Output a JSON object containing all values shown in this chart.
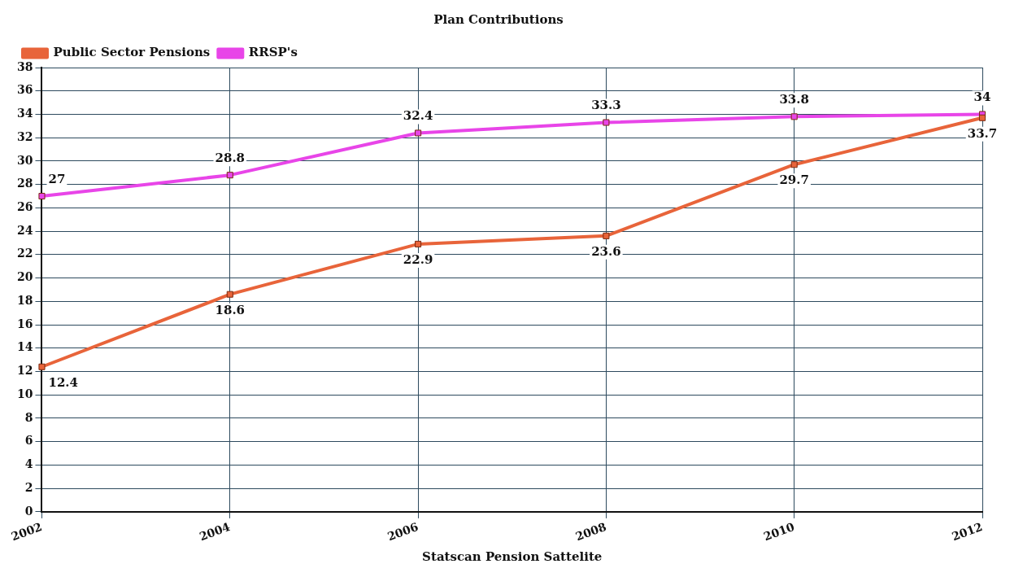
{
  "chart_data": {
    "type": "line",
    "title": "Plan Contributions",
    "xlabel": "Statscan Pension Sattelite",
    "categories": [
      "2002",
      "2004",
      "2006",
      "2008",
      "2010",
      "2012"
    ],
    "series": [
      {
        "name": "Public Sector Pensions",
        "color": "#e8643a",
        "values": [
          12.4,
          18.6,
          22.9,
          23.6,
          29.7,
          33.7
        ]
      },
      {
        "name": "RRSP's",
        "color": "#e845e8",
        "values": [
          27,
          28.8,
          32.4,
          33.3,
          33.8,
          34
        ]
      }
    ],
    "ylim": [
      0,
      38
    ],
    "yticks": [
      0,
      2,
      4,
      6,
      8,
      10,
      12,
      14,
      16,
      18,
      20,
      22,
      24,
      26,
      28,
      30,
      32,
      34,
      36,
      38
    ],
    "grid": true,
    "legend": "top left",
    "marker": "square",
    "line_style": "solid",
    "data_labels": true
  }
}
